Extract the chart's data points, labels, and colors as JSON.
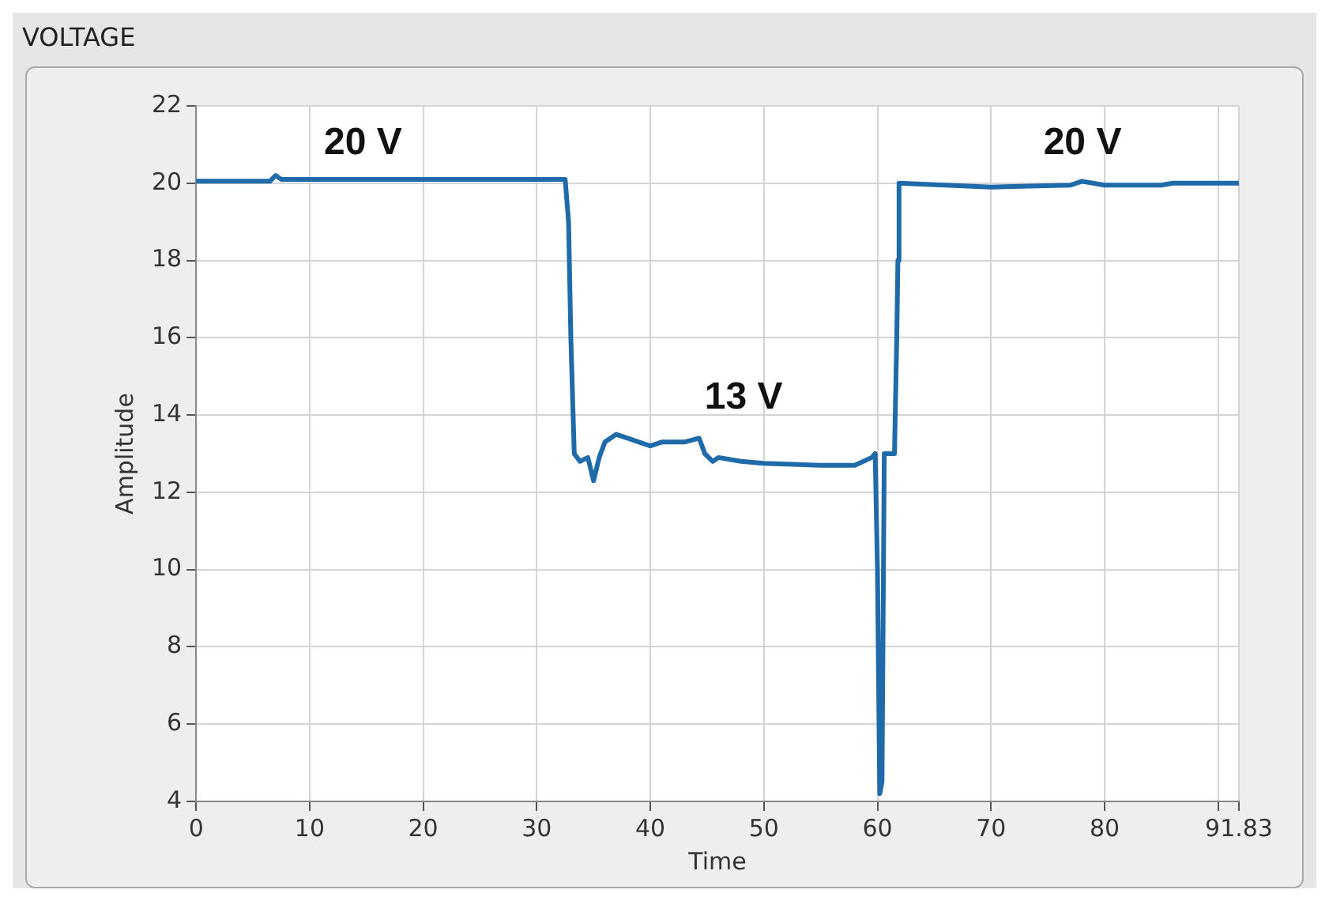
{
  "chart_data": {
    "type": "line",
    "title": "VOLTAGE",
    "xlabel": "Time",
    "ylabel": "Amplitude",
    "x": [
      0,
      6.5,
      7,
      7.5,
      32.5,
      32.8,
      33,
      33.2,
      33.3,
      33.8,
      34.5,
      35,
      35.5,
      36,
      37,
      38,
      39,
      40,
      41,
      42,
      43,
      44.3,
      44.8,
      45.5,
      46,
      48,
      50,
      55,
      58,
      59.5,
      59.8,
      60,
      60.2,
      60.4,
      60.6,
      61.5,
      61.7,
      61.8,
      61.9,
      70,
      77,
      78,
      80,
      85,
      86,
      91.83
    ],
    "series": [
      {
        "color": "#1f6aa8",
        "values": [
          20.05,
          20.05,
          20.2,
          20.1,
          20.1,
          19,
          16,
          14,
          13,
          12.8,
          12.9,
          12.3,
          12.9,
          13.3,
          13.5,
          13.4,
          13.3,
          13.2,
          13.3,
          13.3,
          13.3,
          13.4,
          13,
          12.8,
          12.9,
          12.8,
          12.75,
          12.7,
          12.7,
          12.9,
          13,
          10,
          4.2,
          4.5,
          13,
          13,
          16,
          18,
          20,
          19.9,
          19.95,
          20.05,
          19.95,
          19.95,
          20,
          20
        ]
      }
    ],
    "xlim": [
      0,
      91.83
    ],
    "xticks": [
      0,
      10,
      20,
      30,
      40,
      50,
      60,
      70,
      80,
      {
        "value": 90,
        "label": null
      },
      91.83
    ],
    "ylim": [
      4,
      22
    ],
    "yticks": [
      4,
      6,
      8,
      10,
      12,
      14,
      16,
      18,
      20,
      22
    ],
    "grid": true,
    "legend": false,
    "marker": "none",
    "line_style": "solid",
    "annotations": [
      "20 V",
      "13 V",
      "20 V"
    ]
  }
}
